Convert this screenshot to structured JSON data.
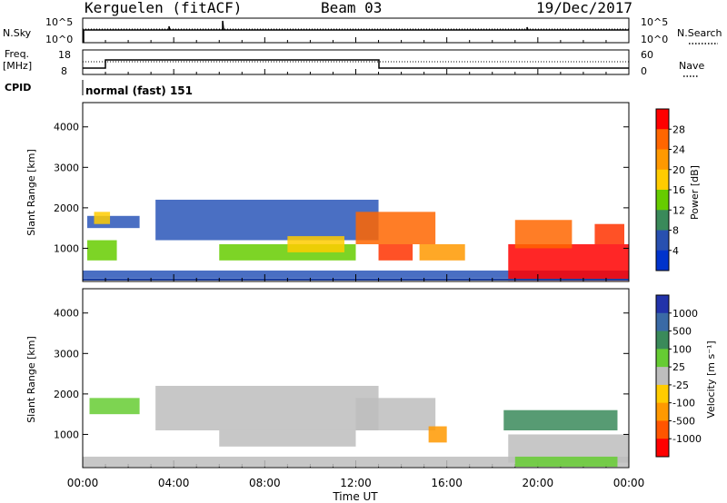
{
  "header": {
    "station": "Kerguelen (fitACF)",
    "beam": "Beam 03",
    "date": "19/Dec/2017"
  },
  "nsky_panel": {
    "left_label": "N.Sky",
    "left_ticks": [
      "10^5",
      "10^0"
    ],
    "right_ticks": [
      "10^5",
      "10^0"
    ],
    "right_label": "N.Search",
    "right_legend_style": "dotted"
  },
  "freq_panel": {
    "left_label_line1": "Freq.",
    "left_label_line2": "[MHz]",
    "left_ticks": [
      "18",
      "8"
    ],
    "right_ticks": [
      "60",
      "0"
    ],
    "right_label": "Nave",
    "right_legend_style": "dotted",
    "cpid_label": "CPID",
    "cpid_mode": "normal (fast) 151"
  },
  "chart_data": [
    {
      "type": "heatmap",
      "title": "Power",
      "ylabel": "Slant Range [km]",
      "ylim": [
        180,
        4600
      ],
      "yticks": [
        "1000",
        "2000",
        "3000",
        "4000"
      ],
      "colorbar": {
        "label": "Power [dB]",
        "labels": [
          "28",
          "24",
          "20",
          "16",
          "12",
          "8",
          "4"
        ],
        "colors": [
          "#ff0000",
          "#ff6600",
          "#ff9900",
          "#ffcc00",
          "#66cc00",
          "#3a8a5a",
          "#2850b0",
          "#0033cc"
        ]
      },
      "regions": [
        {
          "x": [
            0.0,
            24.0
          ],
          "y": [
            250,
            450
          ],
          "level": "low-mixed",
          "color": "#2a56b8"
        },
        {
          "x": [
            0.2,
            1.5
          ],
          "y": [
            700,
            1200
          ],
          "level": "medium",
          "color": "#66cc00"
        },
        {
          "x": [
            0.2,
            2.5
          ],
          "y": [
            1500,
            1800
          ],
          "level": "low",
          "color": "#2a56b8"
        },
        {
          "x": [
            0.5,
            1.2
          ],
          "y": [
            1600,
            1900
          ],
          "level": "medium",
          "color": "#ffcc00"
        },
        {
          "x": [
            3.2,
            13.0
          ],
          "y": [
            1200,
            2200
          ],
          "level": "low",
          "color": "#2a56b8"
        },
        {
          "x": [
            6.0,
            12.0
          ],
          "y": [
            700,
            1100
          ],
          "level": "medium",
          "color": "#66cc00"
        },
        {
          "x": [
            9.0,
            11.5
          ],
          "y": [
            900,
            1300
          ],
          "level": "medium-high",
          "color": "#ffcc00"
        },
        {
          "x": [
            12.0,
            15.5
          ],
          "y": [
            1100,
            1900
          ],
          "level": "high",
          "color": "#ff6600"
        },
        {
          "x": [
            13.0,
            14.5
          ],
          "y": [
            700,
            1100
          ],
          "level": "high",
          "color": "#ff3300"
        },
        {
          "x": [
            14.8,
            16.8
          ],
          "y": [
            700,
            1100
          ],
          "level": "medium-high",
          "color": "#ff9900"
        },
        {
          "x": [
            18.7,
            24.0
          ],
          "y": [
            200,
            1100
          ],
          "level": "very-high",
          "color": "#ff0000"
        },
        {
          "x": [
            19.0,
            21.5
          ],
          "y": [
            1000,
            1700
          ],
          "level": "high",
          "color": "#ff6600"
        },
        {
          "x": [
            22.5,
            23.8
          ],
          "y": [
            1100,
            1600
          ],
          "level": "high",
          "color": "#ff3300"
        }
      ]
    },
    {
      "type": "heatmap",
      "title": "Velocity",
      "ylabel": "Slant Range [km]",
      "ylim": [
        180,
        4600
      ],
      "yticks": [
        "1000",
        "2000",
        "3000",
        "4000"
      ],
      "xlabel": "Time UT",
      "xticks": [
        "00:00",
        "04:00",
        "08:00",
        "12:00",
        "16:00",
        "20:00",
        "00:00"
      ],
      "colorbar": {
        "label": "Velocity [m s⁻¹]",
        "labels": [
          "1000",
          "500",
          "100",
          "25",
          "-25",
          "-100",
          "-500",
          "-1000"
        ],
        "colors": [
          "#2233aa",
          "#3a6aa6",
          "#3a8a5a",
          "#66cc33",
          "#bdbdbd",
          "#ffcc00",
          "#ff9900",
          "#ff5500",
          "#ff0000"
        ]
      },
      "regions": [
        {
          "x": [
            0.0,
            24.0
          ],
          "y": [
            200,
            450
          ],
          "level": "mixed",
          "color": "#bdbdbd"
        },
        {
          "x": [
            0.3,
            2.5
          ],
          "y": [
            1500,
            1900
          ],
          "level": "low positive",
          "color": "#66cc33"
        },
        {
          "x": [
            3.2,
            13.0
          ],
          "y": [
            1100,
            2200
          ],
          "level": "ground scatter",
          "color": "#bdbdbd"
        },
        {
          "x": [
            6.0,
            12.0
          ],
          "y": [
            700,
            1100
          ],
          "level": "ground scatter",
          "color": "#bdbdbd"
        },
        {
          "x": [
            12.0,
            15.5
          ],
          "y": [
            1100,
            1900
          ],
          "level": "ground scatter",
          "color": "#bdbdbd"
        },
        {
          "x": [
            15.2,
            16.0
          ],
          "y": [
            800,
            1200
          ],
          "level": "negative",
          "color": "#ff9900"
        },
        {
          "x": [
            18.5,
            23.5
          ],
          "y": [
            1100,
            1600
          ],
          "level": "positive",
          "color": "#3a8a5a"
        },
        {
          "x": [
            18.7,
            24.0
          ],
          "y": [
            300,
            1000
          ],
          "level": "ground scatter",
          "color": "#bdbdbd"
        },
        {
          "x": [
            19.0,
            23.5
          ],
          "y": [
            200,
            450
          ],
          "level": "low positive",
          "color": "#66cc33"
        }
      ]
    }
  ]
}
